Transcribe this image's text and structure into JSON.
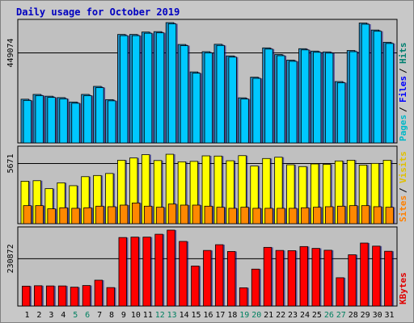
{
  "chart_data": {
    "type": "bar",
    "title": "Daily usage for October 2019",
    "categories": [
      "1",
      "2",
      "3",
      "4",
      "5",
      "6",
      "7",
      "8",
      "9",
      "10",
      "11",
      "12",
      "13",
      "14",
      "15",
      "16",
      "17",
      "18",
      "19",
      "20",
      "21",
      "22",
      "23",
      "24",
      "25",
      "26",
      "27",
      "28",
      "29",
      "30",
      "31"
    ],
    "weekend_days": [
      "5",
      "6",
      "12",
      "13",
      "19",
      "20",
      "26",
      "27"
    ],
    "panels": [
      {
        "id": "hits-files-pages",
        "axis_label": "449074",
        "axis_value": 449074,
        "ylim": [
          0,
          600000
        ],
        "legend": [
          {
            "text": "Pages",
            "color": "#00b8c8"
          },
          {
            "text": "Files",
            "color": "#0000ff"
          },
          {
            "text": "Hits",
            "color": "#008070"
          }
        ],
        "series": [
          {
            "name": "Hits",
            "color": "#1e90c8",
            "values": [
              218000,
              242000,
              233000,
              226000,
              204000,
              242000,
              282000,
              216000,
              541000,
              541000,
              553000,
              555000,
              600000,
              491000,
              354000,
              455000,
              492000,
              434000,
              225000,
              328000,
              474000,
              441000,
              413000,
              470000,
              458000,
              454000,
              306000,
              461000,
              598000,
              563000,
              502000
            ]
          },
          {
            "name": "Files",
            "color": "#00c8ff",
            "values": [
              212000,
              236000,
              227000,
              220000,
              198000,
              236000,
              276000,
              210000,
              535000,
              535000,
              547000,
              549000,
              594000,
              485000,
              348000,
              449000,
              486000,
              428000,
              219000,
              322000,
              468000,
              435000,
              407000,
              464000,
              452000,
              448000,
              300000,
              455000,
              592000,
              557000,
              496000
            ]
          }
        ]
      },
      {
        "id": "visits-sites",
        "axis_label": "5671",
        "axis_value": 5671,
        "ylim": [
          0,
          7000
        ],
        "legend": [
          {
            "text": "Sites",
            "color": "#ff8000"
          },
          {
            "text": "Visits",
            "color": "#e0c000"
          }
        ],
        "series": [
          {
            "name": "Visits",
            "color": "#ffff00",
            "values": [
              4000,
              4050,
              3300,
              3850,
              3580,
              4430,
              4540,
              4730,
              5980,
              6190,
              6500,
              5950,
              6540,
              5830,
              5870,
              6390,
              6370,
              5930,
              6410,
              5430,
              6140,
              6260,
              5550,
              5380,
              5630,
              5590,
              5910,
              5980,
              5520,
              5680,
              5980
            ]
          },
          {
            "name": "Sites",
            "color": "#ff8800",
            "values": [
              1700,
              1700,
              1400,
              1500,
              1450,
              1500,
              1650,
              1600,
              1750,
              1950,
              1650,
              1550,
              1850,
              1750,
              1750,
              1650,
              1550,
              1450,
              1550,
              1450,
              1450,
              1450,
              1450,
              1500,
              1550,
              1600,
              1650,
              1700,
              1700,
              1600,
              1550
            ]
          }
        ]
      },
      {
        "id": "kbytes",
        "axis_label": "230872",
        "axis_value": 230872,
        "ylim": [
          0,
          370000
        ],
        "legend": [
          {
            "text": "KBytes",
            "color": "#e00000"
          }
        ],
        "series": [
          {
            "name": "KBytes",
            "color": "#ff0000",
            "values": [
              97000,
              99000,
              98000,
              98000,
              92000,
              100000,
              126000,
              90000,
              334000,
              336000,
              336000,
              350000,
              370000,
              315000,
              195000,
              271000,
              299000,
              266000,
              89000,
              180000,
              286000,
              271000,
              270000,
              290000,
              281000,
              272000,
              138000,
              250000,
              307000,
              292000,
              267000
            ]
          }
        ]
      }
    ]
  }
}
